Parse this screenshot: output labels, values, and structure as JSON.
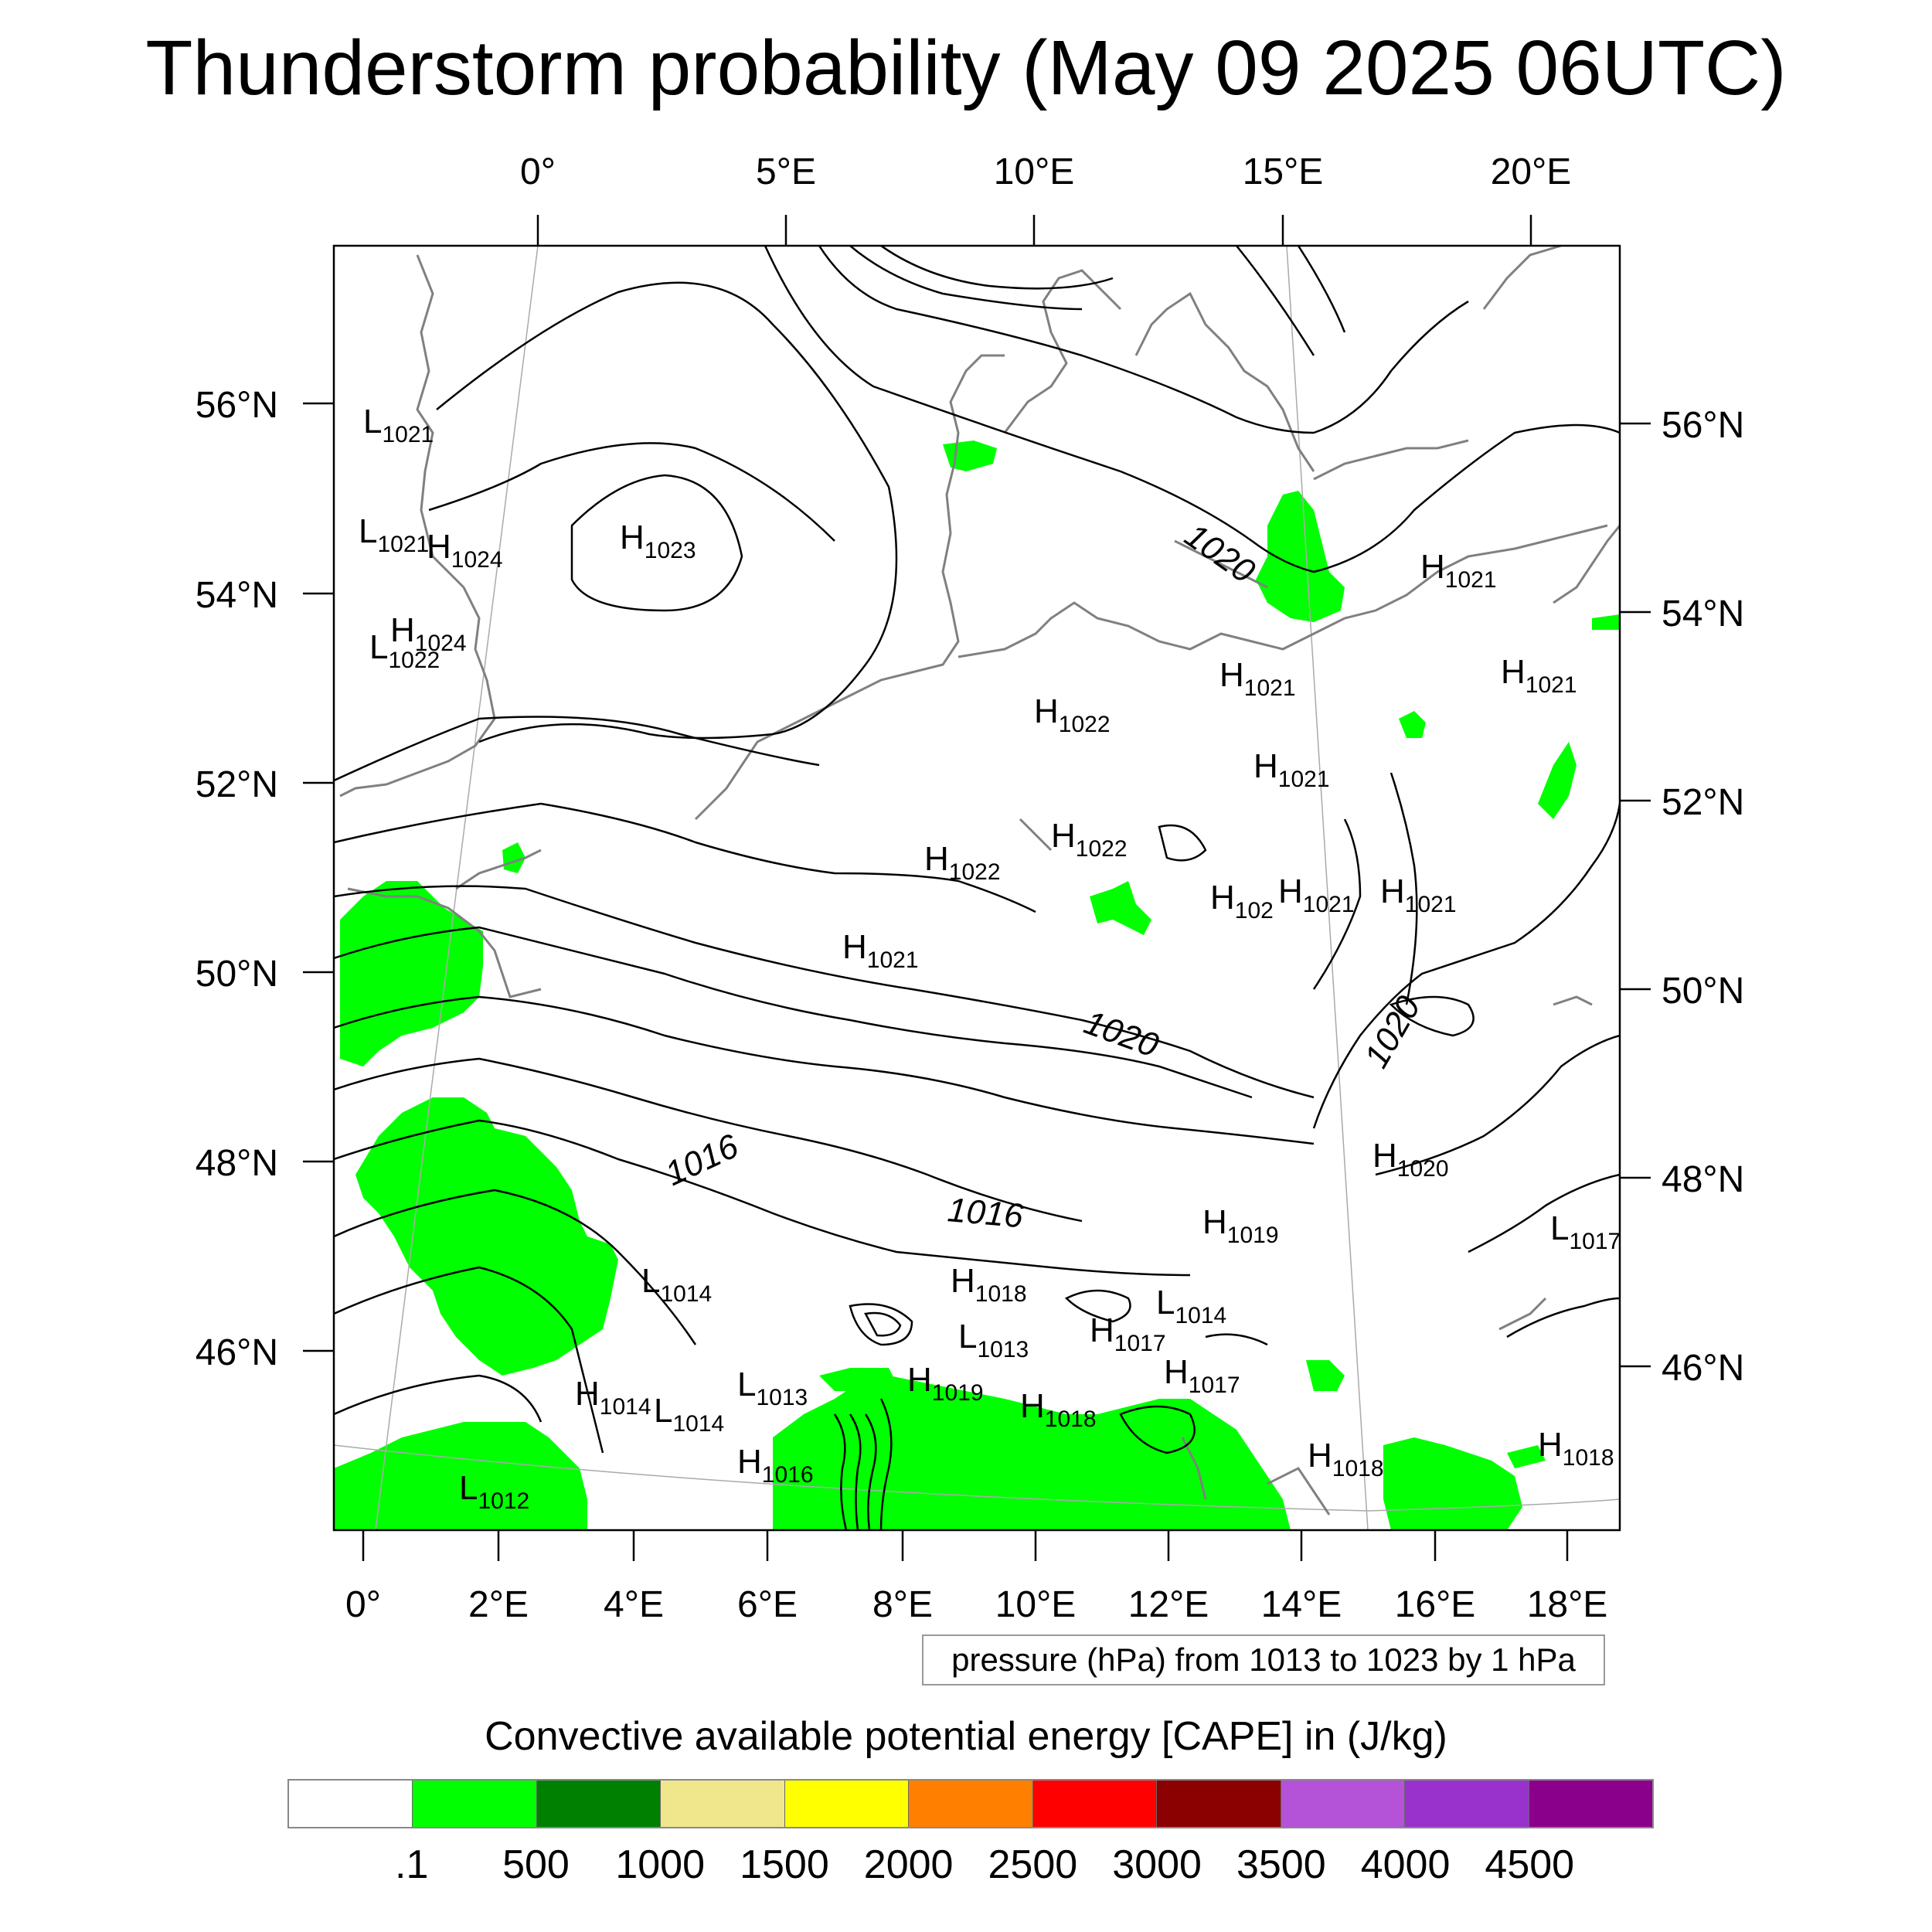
{
  "title": "Thunderstorm probability (May 09 2025 06UTC)",
  "map": {
    "top_lon_labels": [
      "0°",
      "5°E",
      "10°E",
      "15°E",
      "20°E"
    ],
    "bottom_lon_labels": [
      "0°",
      "2°E",
      "4°E",
      "6°E",
      "8°E",
      "10°E",
      "12°E",
      "14°E",
      "16°E",
      "18°E"
    ],
    "left_lat_labels": [
      "56°N",
      "54°N",
      "52°N",
      "50°N",
      "48°N",
      "46°N"
    ],
    "right_lat_labels": [
      "56°N",
      "54°N",
      "52°N",
      "50°N",
      "48°N",
      "46°N"
    ],
    "contour_labels": [
      "1020",
      "1020",
      "1020",
      "1016",
      "1016"
    ],
    "pressure_centers": [
      {
        "type": "L",
        "value": "1021"
      },
      {
        "type": "L",
        "value": "1021"
      },
      {
        "type": "H",
        "value": "1024"
      },
      {
        "type": "H",
        "value": "1023"
      },
      {
        "type": "H",
        "value": "1024"
      },
      {
        "type": "L",
        "value": "1022"
      },
      {
        "type": "H",
        "value": "1022"
      },
      {
        "type": "H",
        "value": "1021"
      },
      {
        "type": "H",
        "value": "1021"
      },
      {
        "type": "H",
        "value": "1021"
      },
      {
        "type": "H",
        "value": "1022"
      },
      {
        "type": "H",
        "value": "1022"
      },
      {
        "type": "H",
        "value": "102"
      },
      {
        "type": "H",
        "value": "1021"
      },
      {
        "type": "H",
        "value": "1021"
      },
      {
        "type": "H",
        "value": "1021"
      },
      {
        "type": "H",
        "value": "1021"
      },
      {
        "type": "H",
        "value": "1020"
      },
      {
        "type": "H",
        "value": "1019"
      },
      {
        "type": "L",
        "value": "1014"
      },
      {
        "type": "H",
        "value": "1018"
      },
      {
        "type": "L",
        "value": "1014"
      },
      {
        "type": "L",
        "value": "1013"
      },
      {
        "type": "H",
        "value": "1017"
      },
      {
        "type": "H",
        "value": "1019"
      },
      {
        "type": "H",
        "value": "1014"
      },
      {
        "type": "L",
        "value": "1014"
      },
      {
        "type": "L",
        "value": "1013"
      },
      {
        "type": "H",
        "value": "1018"
      },
      {
        "type": "H",
        "value": "1017"
      },
      {
        "type": "H",
        "value": "1016"
      },
      {
        "type": "L",
        "value": "1012"
      },
      {
        "type": "H",
        "value": "1018"
      },
      {
        "type": "H",
        "value": "1018"
      },
      {
        "type": "L",
        "value": "1017"
      }
    ]
  },
  "pressure_note": "pressure (hPa) from 1013 to 1023 by 1 hPa",
  "colorbar": {
    "title": "Convective available potential energy [CAPE] in (J/kg)",
    "colors": [
      "#ffffff",
      "#00ff00",
      "#008000",
      "#f0e68c",
      "#ffff00",
      "#ff8000",
      "#ff0000",
      "#8b0000",
      "#b452d8",
      "#9932cc",
      "#8b008b"
    ],
    "labels": [
      ".1",
      "500",
      "1000",
      "1500",
      "2000",
      "2500",
      "3000",
      "3500",
      "4000",
      "4500"
    ]
  }
}
